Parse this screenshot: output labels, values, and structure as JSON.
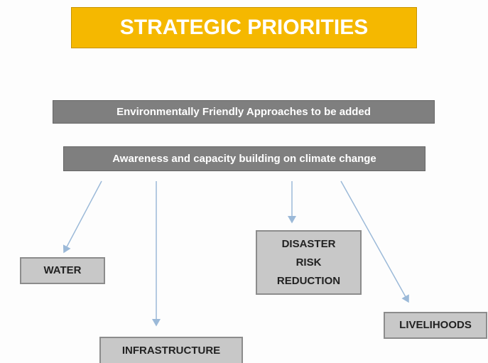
{
  "title": "STRATEGIC PRIORITIES",
  "bars": [
    "Environmentally Friendly Approaches to be added",
    "Awareness and capacity building on climate change"
  ],
  "nodes": [
    {
      "label": "WATER"
    },
    {
      "label": "INFRASTRUCTURE"
    },
    {
      "label": "DISASTER RISK REDUCTION"
    },
    {
      "label": "LIVELIHOODS"
    }
  ]
}
